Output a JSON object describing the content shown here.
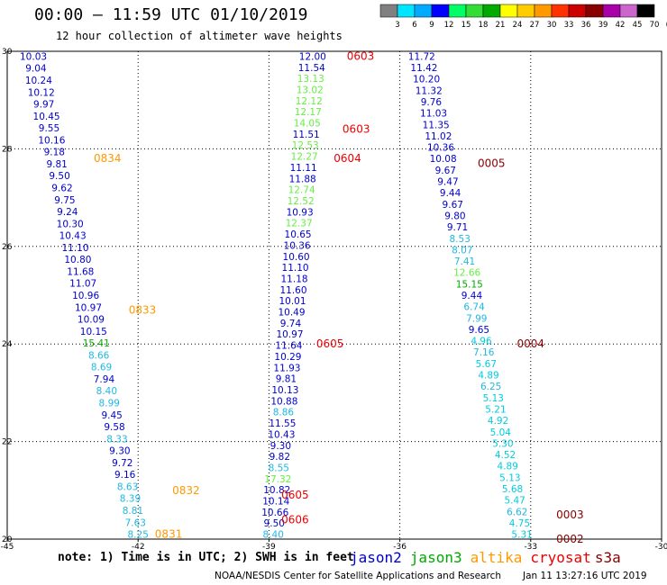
{
  "header": {
    "title": "00:00 – 11:59 UTC 01/10/2019",
    "subtitle": "12 hour collection of altimeter wave heights"
  },
  "footer": {
    "note": "note: 1) Time is in UTC; 2) SWH is in feet",
    "credit": "NOAA/NESDIS Center for Satellite Applications and Research",
    "timestamp": "Jan 11 13:27:16 UTC 2019"
  },
  "legend": {
    "satellites": [
      {
        "name": "jason2",
        "color": "#0000cc"
      },
      {
        "name": "jason3",
        "color": "#00aa00"
      },
      {
        "name": "altika",
        "color": "#ff9900"
      },
      {
        "name": "cryosat",
        "color": "#ee0000"
      },
      {
        "name": "s3a",
        "color": "#880000"
      }
    ],
    "scale_labels": [
      "3",
      "6",
      "9",
      "12",
      "15",
      "18",
      "21",
      "24",
      "27",
      "30",
      "33",
      "36",
      "39",
      "42",
      "45",
      "70",
      "(ft)"
    ],
    "scale_colors": [
      "#808080",
      "#00e5ff",
      "#00aaff",
      "#0000ff",
      "#00ff66",
      "#33dd33",
      "#00aa00",
      "#ffff00",
      "#ffcc00",
      "#ff9900",
      "#ff3300",
      "#cc0000",
      "#880000",
      "#aa00aa",
      "#cc66cc",
      "#000000"
    ]
  },
  "chart_data": {
    "type": "scatter",
    "title": "00:00 – 11:59 UTC 01/10/2019",
    "xlim": [
      -45,
      -30
    ],
    "ylim": [
      20,
      30
    ],
    "x_ticks": [
      "-45",
      "-42",
      "-39",
      "-36",
      "-33",
      "-30"
    ],
    "y_ticks": [
      "20",
      "22",
      "24",
      "26",
      "28",
      "30"
    ],
    "grid": true,
    "tracks": [
      {
        "name": "track-a",
        "values": [
          "10.03",
          "9.04",
          "10.24",
          "10.12",
          "9.97",
          "10.45",
          "9.55",
          "10.16",
          "9.18",
          "9.81",
          "9.50",
          "9.62",
          "9.75",
          "9.24",
          "10.30",
          "10.43",
          "11.10",
          "10.80",
          "11.68",
          "11.07",
          "10.96",
          "10.97",
          "10.09",
          "10.15",
          "15.41",
          "8.66",
          "8.69",
          "7.94",
          "8.40",
          "8.99",
          "9.45",
          "9.58",
          "8.33",
          "9.30",
          "9.72",
          "9.16",
          "8.63",
          "8.39",
          "8.81",
          "7.63",
          "8.25"
        ],
        "colors": [
          "#0000cc",
          "#0000cc",
          "#0000cc",
          "#0000cc",
          "#0000cc",
          "#0000cc",
          "#0000cc",
          "#0000cc",
          "#0000cc",
          "#0000cc",
          "#0000cc",
          "#0000cc",
          "#0000cc",
          "#0000cc",
          "#0000cc",
          "#0000cc",
          "#0000cc",
          "#0000cc",
          "#0000cc",
          "#0000cc",
          "#0000cc",
          "#0000cc",
          "#0000cc",
          "#0000cc",
          "#00aa00",
          "#1fb8e0",
          "#1fb8e0",
          "#0000cc",
          "#1fb8e0",
          "#1fb8e0",
          "#0000cc",
          "#0000cc",
          "#1fb8e0",
          "#0000cc",
          "#0000cc",
          "#0000cc",
          "#1fb8e0",
          "#1fb8e0",
          "#1fb8e0",
          "#1fb8e0",
          "#1fb8e0"
        ],
        "lon_start": -44.4,
        "lat_start": 29.9,
        "lon_end": -42.0,
        "lat_end": 20.1,
        "times": [
          {
            "label": "0834",
            "lat": 27.8,
            "lon": -42.7,
            "color": "#ff9900"
          },
          {
            "label": "0833",
            "lat": 24.7,
            "lon": -41.9,
            "color": "#ff9900"
          },
          {
            "label": "0832",
            "lat": 21.0,
            "lon": -40.9,
            "color": "#ff9900"
          },
          {
            "label": "0831",
            "lat": 20.1,
            "lon": -41.3,
            "color": "#ff9900"
          }
        ]
      },
      {
        "name": "track-b",
        "values": [
          "12.00",
          "11.54",
          "13.13",
          "13.02",
          "12.12",
          "12.17",
          "14.05",
          "11.51",
          "12.53",
          "12.27",
          "11.11",
          "11.88",
          "12.74",
          "12.52",
          "10.93",
          "12.37",
          "10.65",
          "10.36",
          "10.60",
          "11.10",
          "11.18",
          "11.60",
          "10.01",
          "10.49",
          "9.74",
          "10.97",
          "11.64",
          "10.29",
          "11.93",
          "9.81",
          "10.13",
          "10.88",
          "8.86",
          "11.55",
          "10.43",
          "9.30",
          "9.82",
          "8.55",
          "17.32",
          "10.82",
          "10.14",
          "10.66",
          "9.50",
          "8.40"
        ],
        "colors": [
          "#0000cc",
          "#0000cc",
          "#66ee44",
          "#66ee44",
          "#66ee44",
          "#66ee44",
          "#66ee44",
          "#0000cc",
          "#66ee44",
          "#66ee44",
          "#0000cc",
          "#0000cc",
          "#66ee44",
          "#66ee44",
          "#0000cc",
          "#66ee44",
          "#0000cc",
          "#0000cc",
          "#0000cc",
          "#0000cc",
          "#0000cc",
          "#0000cc",
          "#0000cc",
          "#0000cc",
          "#0000cc",
          "#0000cc",
          "#0000cc",
          "#0000cc",
          "#0000cc",
          "#0000cc",
          "#0000cc",
          "#0000cc",
          "#1fb8e0",
          "#0000cc",
          "#0000cc",
          "#0000cc",
          "#0000cc",
          "#1fb8e0",
          "#66ee44",
          "#0000cc",
          "#0000cc",
          "#0000cc",
          "#0000cc",
          "#1fb8e0"
        ],
        "lon_start": -38.0,
        "lat_start": 29.9,
        "lon_end": -38.9,
        "lat_end": 20.1,
        "times": [
          {
            "label": "0603",
            "lat": 29.9,
            "lon": -36.9,
            "color": "#ee0000"
          },
          {
            "label": "0603",
            "lat": 28.4,
            "lon": -37.0,
            "color": "#ee0000"
          },
          {
            "label": "0604",
            "lat": 27.8,
            "lon": -37.2,
            "color": "#ee0000"
          },
          {
            "label": "0605",
            "lat": 24.0,
            "lon": -37.6,
            "color": "#ee0000"
          },
          {
            "label": "0605",
            "lat": 20.9,
            "lon": -38.4,
            "color": "#ee0000"
          },
          {
            "label": "0606",
            "lat": 20.4,
            "lon": -38.4,
            "color": "#ee0000"
          }
        ]
      },
      {
        "name": "track-c",
        "values": [
          "11.72",
          "11.42",
          "10.20",
          "11.32",
          "9.76",
          "11.03",
          "11.35",
          "11.02",
          "10.36",
          "10.08",
          "9.67",
          "9.47",
          "9.44",
          "9.67",
          "9.80",
          "9.71",
          "8.53",
          "8.07",
          "7.41",
          "12.66",
          "15.15",
          "9.44",
          "6.74",
          "7.99",
          "9.65",
          "4.96",
          "7.16",
          "5.67",
          "4.89",
          "6.25",
          "5.13",
          "5.21",
          "4.92",
          "5.04",
          "5.30",
          "4.52",
          "4.89",
          "5.13",
          "5.68",
          "5.47",
          "6.62",
          "4.75",
          "5.31"
        ],
        "colors": [
          "#0000cc",
          "#0000cc",
          "#0000cc",
          "#0000cc",
          "#0000cc",
          "#0000cc",
          "#0000cc",
          "#0000cc",
          "#0000cc",
          "#0000cc",
          "#0000cc",
          "#0000cc",
          "#0000cc",
          "#0000cc",
          "#0000cc",
          "#0000cc",
          "#1fb8e0",
          "#1fb8e0",
          "#1fb8e0",
          "#66ee44",
          "#00aa00",
          "#0000cc",
          "#1fb8e0",
          "#1fb8e0",
          "#0000cc",
          "#00ccdd",
          "#1fb8e0",
          "#00ccdd",
          "#00ccdd",
          "#1fb8e0",
          "#00ccdd",
          "#00ccdd",
          "#00ccdd",
          "#00ccdd",
          "#00ccdd",
          "#00ccdd",
          "#00ccdd",
          "#00ccdd",
          "#00ccdd",
          "#00ccdd",
          "#1fb8e0",
          "#00ccdd",
          "#00ccdd"
        ],
        "lon_start": -35.5,
        "lat_start": 29.9,
        "lon_end": -33.2,
        "lat_end": 20.1,
        "times": [
          {
            "label": "0005",
            "lat": 27.7,
            "lon": -33.9,
            "color": "#880000"
          },
          {
            "label": "0004",
            "lat": 24.0,
            "lon": -33.0,
            "color": "#880000"
          },
          {
            "label": "0003",
            "lat": 20.5,
            "lon": -32.1,
            "color": "#880000"
          },
          {
            "label": "0002",
            "lat": 20.0,
            "lon": -32.1,
            "color": "#880000"
          }
        ]
      }
    ]
  }
}
